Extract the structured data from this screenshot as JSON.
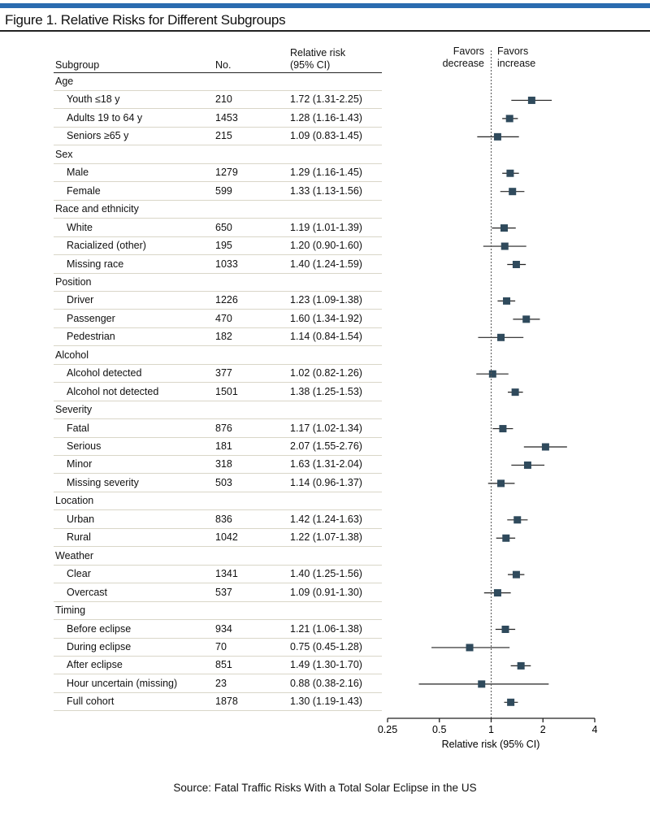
{
  "figure_title": "Figure 1. Relative Risks for Different Subgroups",
  "source": "Source: Fatal Traffic Risks With a Total Solar Eclipse in the US",
  "columns": {
    "subgroup": "Subgroup",
    "no": "No.",
    "rr_line1": "Relative risk",
    "rr_line2": "(95% CI)"
  },
  "favors": {
    "decrease_1": "Favors",
    "decrease_2": "decrease",
    "increase_1": "Favors",
    "increase_2": "increase"
  },
  "colors": {
    "marker": "#2f4a5c",
    "accent": "#2a6cb0"
  },
  "chart_data": {
    "type": "forest",
    "title": "Relative Risks for Different Subgroups",
    "xlabel": "Relative risk (95% CI)",
    "xscale": "log2",
    "xlim": [
      0.25,
      4
    ],
    "xticks": [
      "0.25",
      "0.5",
      "1",
      "2",
      "4"
    ],
    "xtick_values": [
      0.25,
      0.5,
      1,
      2,
      4
    ],
    "reference_line": 1,
    "rows": [
      {
        "group": "Age"
      },
      {
        "label": "Youth ≤18 y",
        "n": "210",
        "rr_text": "1.72 (1.31-2.25)",
        "rr": 1.72,
        "lo": 1.31,
        "hi": 2.25
      },
      {
        "label": "Adults 19 to 64 y",
        "n": "1453",
        "rr_text": "1.28 (1.16-1.43)",
        "rr": 1.28,
        "lo": 1.16,
        "hi": 1.43
      },
      {
        "label": "Seniors ≥65 y",
        "n": "215",
        "rr_text": "1.09 (0.83-1.45)",
        "rr": 1.09,
        "lo": 0.83,
        "hi": 1.45
      },
      {
        "group": "Sex"
      },
      {
        "label": "Male",
        "n": "1279",
        "rr_text": "1.29 (1.16-1.45)",
        "rr": 1.29,
        "lo": 1.16,
        "hi": 1.45
      },
      {
        "label": "Female",
        "n": "599",
        "rr_text": "1.33 (1.13-1.56)",
        "rr": 1.33,
        "lo": 1.13,
        "hi": 1.56
      },
      {
        "group": "Race and ethnicity"
      },
      {
        "label": "White",
        "n": "650",
        "rr_text": "1.19 (1.01-1.39)",
        "rr": 1.19,
        "lo": 1.01,
        "hi": 1.39
      },
      {
        "label": "Racialized (other)",
        "n": "195",
        "rr_text": "1.20 (0.90-1.60)",
        "rr": 1.2,
        "lo": 0.9,
        "hi": 1.6
      },
      {
        "label": "Missing race",
        "n": "1033",
        "rr_text": "1.40 (1.24-1.59)",
        "rr": 1.4,
        "lo": 1.24,
        "hi": 1.59
      },
      {
        "group": "Position"
      },
      {
        "label": "Driver",
        "n": "1226",
        "rr_text": "1.23 (1.09-1.38)",
        "rr": 1.23,
        "lo": 1.09,
        "hi": 1.38
      },
      {
        "label": "Passenger",
        "n": "470",
        "rr_text": "1.60 (1.34-1.92)",
        "rr": 1.6,
        "lo": 1.34,
        "hi": 1.92
      },
      {
        "label": "Pedestrian",
        "n": "182",
        "rr_text": "1.14 (0.84-1.54)",
        "rr": 1.14,
        "lo": 0.84,
        "hi": 1.54
      },
      {
        "group": "Alcohol"
      },
      {
        "label": "Alcohol detected",
        "n": "377",
        "rr_text": "1.02 (0.82-1.26)",
        "rr": 1.02,
        "lo": 0.82,
        "hi": 1.26
      },
      {
        "label": "Alcohol not detected",
        "n": "1501",
        "rr_text": "1.38 (1.25-1.53)",
        "rr": 1.38,
        "lo": 1.25,
        "hi": 1.53
      },
      {
        "group": "Severity"
      },
      {
        "label": "Fatal",
        "n": "876",
        "rr_text": "1.17 (1.02-1.34)",
        "rr": 1.17,
        "lo": 1.02,
        "hi": 1.34
      },
      {
        "label": "Serious",
        "n": "181",
        "rr_text": "2.07 (1.55-2.76)",
        "rr": 2.07,
        "lo": 1.55,
        "hi": 2.76
      },
      {
        "label": "Minor",
        "n": "318",
        "rr_text": "1.63 (1.31-2.04)",
        "rr": 1.63,
        "lo": 1.31,
        "hi": 2.04
      },
      {
        "label": "Missing severity",
        "n": "503",
        "rr_text": "1.14 (0.96-1.37)",
        "rr": 1.14,
        "lo": 0.96,
        "hi": 1.37
      },
      {
        "group": "Location"
      },
      {
        "label": "Urban",
        "n": "836",
        "rr_text": "1.42 (1.24-1.63)",
        "rr": 1.42,
        "lo": 1.24,
        "hi": 1.63
      },
      {
        "label": "Rural",
        "n": "1042",
        "rr_text": "1.22 (1.07-1.38)",
        "rr": 1.22,
        "lo": 1.07,
        "hi": 1.38
      },
      {
        "group": "Weather"
      },
      {
        "label": "Clear",
        "n": "1341",
        "rr_text": "1.40 (1.25-1.56)",
        "rr": 1.4,
        "lo": 1.25,
        "hi": 1.56
      },
      {
        "label": "Overcast",
        "n": "537",
        "rr_text": "1.09 (0.91-1.30)",
        "rr": 1.09,
        "lo": 0.91,
        "hi": 1.3
      },
      {
        "group": "Timing"
      },
      {
        "label": "Before eclipse",
        "n": "934",
        "rr_text": "1.21 (1.06-1.38)",
        "rr": 1.21,
        "lo": 1.06,
        "hi": 1.38
      },
      {
        "label": "During eclipse",
        "n": "70",
        "rr_text": "0.75 (0.45-1.28)",
        "rr": 0.75,
        "lo": 0.45,
        "hi": 1.28
      },
      {
        "label": "After eclipse",
        "n": "851",
        "rr_text": "1.49 (1.30-1.70)",
        "rr": 1.49,
        "lo": 1.3,
        "hi": 1.7
      },
      {
        "label": "Hour uncertain (missing)",
        "n": "23",
        "rr_text": "0.88 (0.38-2.16)",
        "rr": 0.88,
        "lo": 0.38,
        "hi": 2.16
      },
      {
        "label": "Full cohort",
        "n": "1878",
        "rr_text": "1.30 (1.19-1.43)",
        "rr": 1.3,
        "lo": 1.19,
        "hi": 1.43
      }
    ]
  }
}
